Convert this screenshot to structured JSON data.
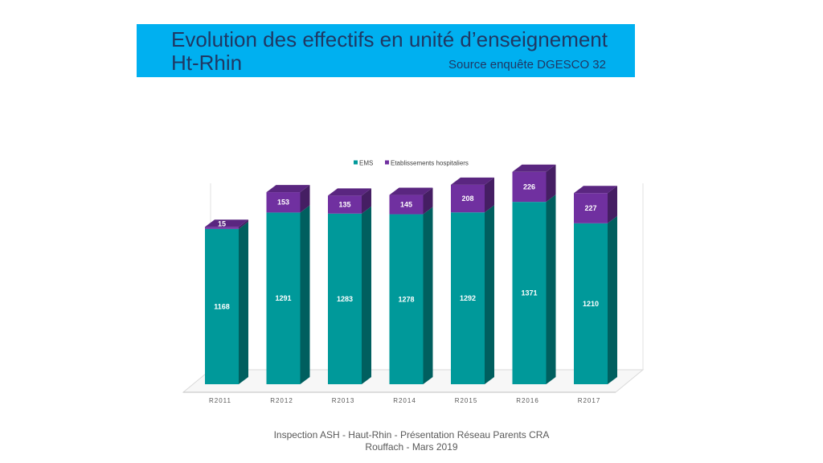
{
  "title": {
    "line1": "Evolution des effectifs en unité d’enseignement",
    "line2": "Ht-Rhin",
    "source": "Source enquête DGESCO 32"
  },
  "footer": {
    "line1": "Inspection ASH - Haut-Rhin - Présentation Réseau Parents CRA",
    "line2": "Rouffach - Mars 2019"
  },
  "colors": {
    "ems": "#00999a",
    "hospital": "#7030a0"
  },
  "chart_data": {
    "type": "bar",
    "stacked": true,
    "three_d": true,
    "categories": [
      "R2011",
      "R2012",
      "R2013",
      "R2014",
      "R2015",
      "R2016",
      "R2017"
    ],
    "series": [
      {
        "name": "EMS",
        "values": [
          1168,
          1291,
          1283,
          1278,
          1292,
          1371,
          1210
        ]
      },
      {
        "name": "Etablissements hospitaliers",
        "values": [
          15,
          153,
          135,
          145,
          208,
          226,
          227
        ]
      }
    ],
    "legend": "top",
    "grid": false,
    "ylim": [
      0,
      1650
    ]
  }
}
